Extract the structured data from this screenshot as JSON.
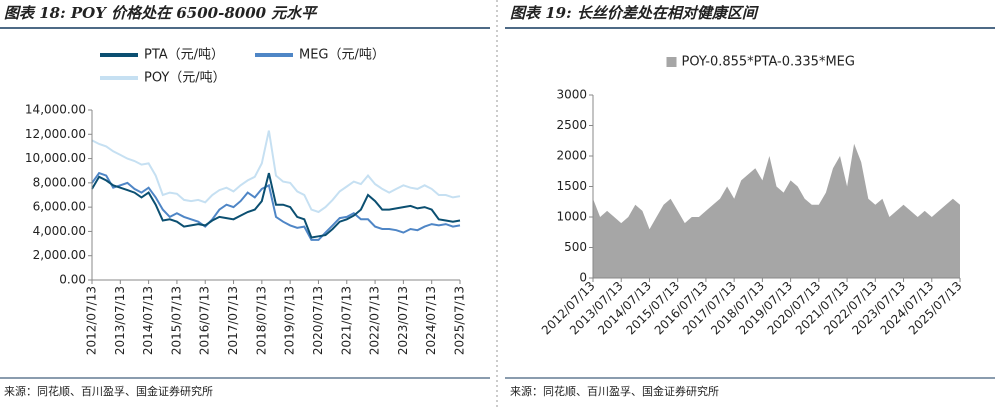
{
  "chart_data": [
    {
      "type": "line",
      "title": "图表 18: POY 价格处在 6500-8000 元水平",
      "source": "来源：同花顺、百川盈孚、国金证券研究所",
      "categories": [
        "2012/07/13",
        null,
        null,
        null,
        "2013/07/13",
        null,
        null,
        null,
        "2014/07/13",
        null,
        null,
        null,
        "2015/07/13",
        null,
        null,
        null,
        "2016/07/13",
        null,
        null,
        null,
        "2017/07/13",
        null,
        null,
        null,
        "2018/07/13",
        null,
        null,
        null,
        "2019/07/13",
        null,
        null,
        null,
        "2020/07/13",
        null,
        null,
        null,
        "2021/07/13",
        null,
        null,
        null,
        "2022/07/13",
        null,
        null,
        null,
        "2023/07/13",
        null,
        null,
        null,
        "2024/07/13",
        null,
        null,
        null,
        "2025/07/13"
      ],
      "series": [
        {
          "name": "PTA（元/吨）",
          "color": "#0b4f71",
          "values": [
            7500,
            8500,
            8200,
            7800,
            7600,
            7400,
            7200,
            6800,
            7200,
            6200,
            4900,
            5000,
            4800,
            4400,
            4500,
            4600,
            4500,
            4900,
            5200,
            5100,
            5000,
            5300,
            5600,
            5800,
            6500,
            8800,
            6200,
            6200,
            6000,
            5200,
            5000,
            3500,
            3600,
            3700,
            4200,
            4800,
            5000,
            5300,
            5800,
            7000,
            6500,
            5800,
            5800,
            5900,
            6000,
            6100,
            5900,
            6000,
            5800,
            5000,
            4900,
            4800,
            4900
          ]
        },
        {
          "name": "MEG（元/吨）",
          "color": "#4f86c6",
          "values": [
            8000,
            8800,
            8600,
            7600,
            7800,
            8000,
            7500,
            7200,
            7600,
            6800,
            5800,
            5200,
            5500,
            5200,
            5000,
            4800,
            4400,
            5000,
            5800,
            6200,
            6000,
            6500,
            7200,
            6800,
            7500,
            7800,
            5200,
            4800,
            4500,
            4300,
            4400,
            3300,
            3300,
            3900,
            4500,
            5100,
            5200,
            5500,
            5000,
            5000,
            4400,
            4200,
            4200,
            4100,
            3900,
            4200,
            4100,
            4400,
            4600,
            4500,
            4600,
            4400,
            4500
          ]
        },
        {
          "name": "POY（元/吨）",
          "color": "#c6e0f2",
          "values": [
            11500,
            11200,
            11000,
            10600,
            10300,
            10000,
            9800,
            9500,
            9600,
            8600,
            7000,
            7200,
            7100,
            6600,
            6500,
            6600,
            6400,
            7000,
            7400,
            7600,
            7300,
            7800,
            8200,
            8500,
            9600,
            12300,
            8600,
            8100,
            8000,
            7300,
            7000,
            5800,
            5600,
            6000,
            6600,
            7300,
            7700,
            8100,
            7900,
            8600,
            7900,
            7500,
            7200,
            7500,
            7800,
            7600,
            7500,
            7800,
            7500,
            7000,
            7000,
            6800,
            6900
          ]
        }
      ],
      "ylim": [
        0,
        14000
      ],
      "yticks": [
        {
          "value": 0,
          "label": "0.00"
        },
        {
          "value": 2000,
          "label": "2,000.00"
        },
        {
          "value": 4000,
          "label": "4,000.00"
        },
        {
          "value": 6000,
          "label": "6,000.00"
        },
        {
          "value": 8000,
          "label": "8,000.00"
        },
        {
          "value": 10000,
          "label": "10,000.00"
        },
        {
          "value": 12000,
          "label": "12,000.00"
        },
        {
          "value": 14000,
          "label": "14,000.00"
        }
      ],
      "legend": "top-left"
    },
    {
      "type": "area",
      "title": "图表 19: 长丝价差处在相对健康区间",
      "source": "来源：同花顺、百川盈孚、国金证券研究所",
      "categories": [
        "2012/07/13",
        null,
        null,
        null,
        "2013/07/13",
        null,
        null,
        null,
        "2014/07/13",
        null,
        null,
        null,
        "2015/07/13",
        null,
        null,
        null,
        "2016/07/13",
        null,
        null,
        null,
        "2017/07/13",
        null,
        null,
        null,
        "2018/07/13",
        null,
        null,
        null,
        "2019/07/13",
        null,
        null,
        null,
        "2020/07/13",
        null,
        null,
        null,
        "2021/07/13",
        null,
        null,
        null,
        "2022/07/13",
        null,
        null,
        null,
        "2023/07/13",
        null,
        null,
        null,
        "2024/07/13",
        null,
        null,
        null,
        "2025/07/13"
      ],
      "series": [
        {
          "name": "POY-0.855*PTA-0.335*MEG",
          "color": "#a6a6a6",
          "values": [
            1300,
            1000,
            1100,
            1000,
            900,
            1000,
            1200,
            1100,
            800,
            1000,
            1200,
            1300,
            1100,
            900,
            1000,
            1000,
            1100,
            1200,
            1300,
            1500,
            1300,
            1600,
            1700,
            1800,
            1600,
            2000,
            1500,
            1400,
            1600,
            1500,
            1300,
            1200,
            1200,
            1400,
            1800,
            2000,
            1500,
            2200,
            1900,
            1300,
            1200,
            1300,
            1000,
            1100,
            1200,
            1100,
            1000,
            1100,
            1000,
            1100,
            1200,
            1300,
            1200
          ]
        }
      ],
      "ylim": [
        0,
        3000
      ],
      "yticks": [
        0,
        500,
        1000,
        1500,
        2000,
        2500,
        3000
      ],
      "legend": "top"
    }
  ]
}
